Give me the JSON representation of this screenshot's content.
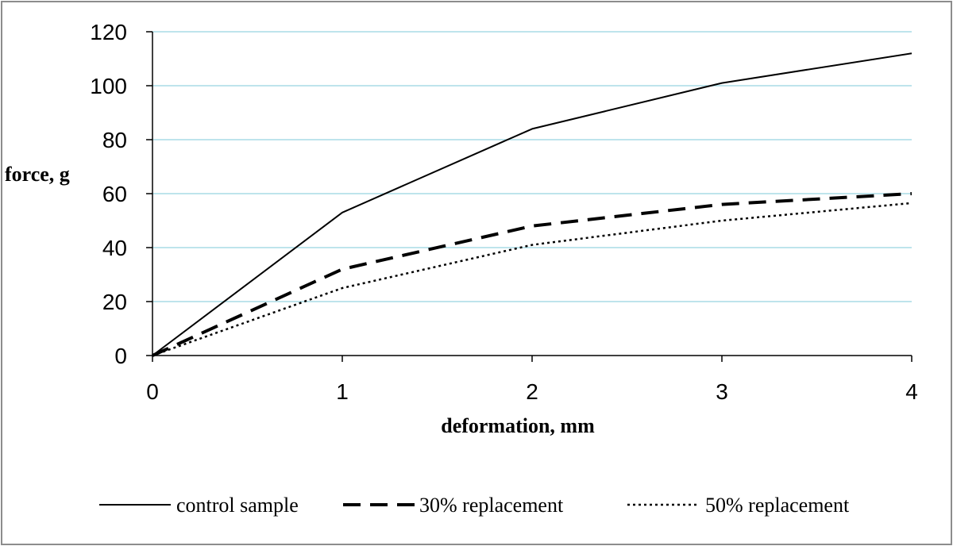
{
  "chart_data": {
    "type": "line",
    "title": "",
    "xlabel": "deformation, mm",
    "ylabel": "force, g",
    "x": [
      0,
      1,
      2,
      3,
      4
    ],
    "xlim": [
      0,
      4
    ],
    "ylim": [
      0,
      120
    ],
    "xticks": [
      "0",
      "1",
      "2",
      "3",
      "4"
    ],
    "yticks": [
      "0",
      "20",
      "40",
      "60",
      "80",
      "100",
      "120"
    ],
    "grid": "horizontal",
    "legend_position": "bottom",
    "grid_color": "#a9dbe6",
    "series": [
      {
        "name": "control sample",
        "values": [
          0,
          53,
          84,
          101,
          112
        ],
        "style": "solid",
        "color": "#000000"
      },
      {
        "name": "30% replacement",
        "values": [
          0,
          32,
          48,
          56,
          60
        ],
        "style": "dashed",
        "color": "#000000"
      },
      {
        "name": "50% replacement",
        "values": [
          0,
          25,
          41,
          50,
          56.5
        ],
        "style": "dotted",
        "color": "#000000"
      }
    ]
  }
}
